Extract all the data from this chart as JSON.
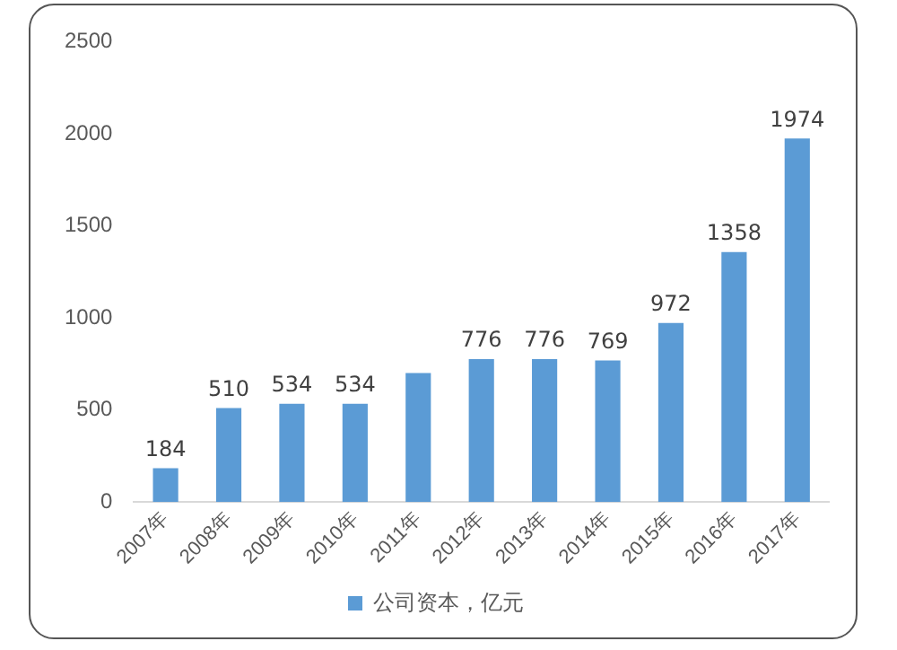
{
  "chart_data": {
    "type": "bar",
    "categories": [
      "2007年",
      "2008年",
      "2009年",
      "2010年",
      "2011年",
      "2012年",
      "2013年",
      "2014年",
      "2015年",
      "2016年",
      "2017年"
    ],
    "series": [
      {
        "name": "公司资本，亿元",
        "color": "#5b9bd5",
        "values": [
          184,
          510,
          534,
          534,
          700,
          776,
          776,
          769,
          972,
          1358,
          1974
        ],
        "value_labels": [
          "184",
          "510",
          "534",
          "534",
          null,
          "776",
          "776",
          "769",
          "972",
          "1358",
          "1974"
        ]
      }
    ],
    "ylim": [
      0,
      2500
    ],
    "yticks": [
      0,
      500,
      1000,
      1500,
      2000,
      2500
    ],
    "grid": false,
    "legend": "bottom"
  }
}
